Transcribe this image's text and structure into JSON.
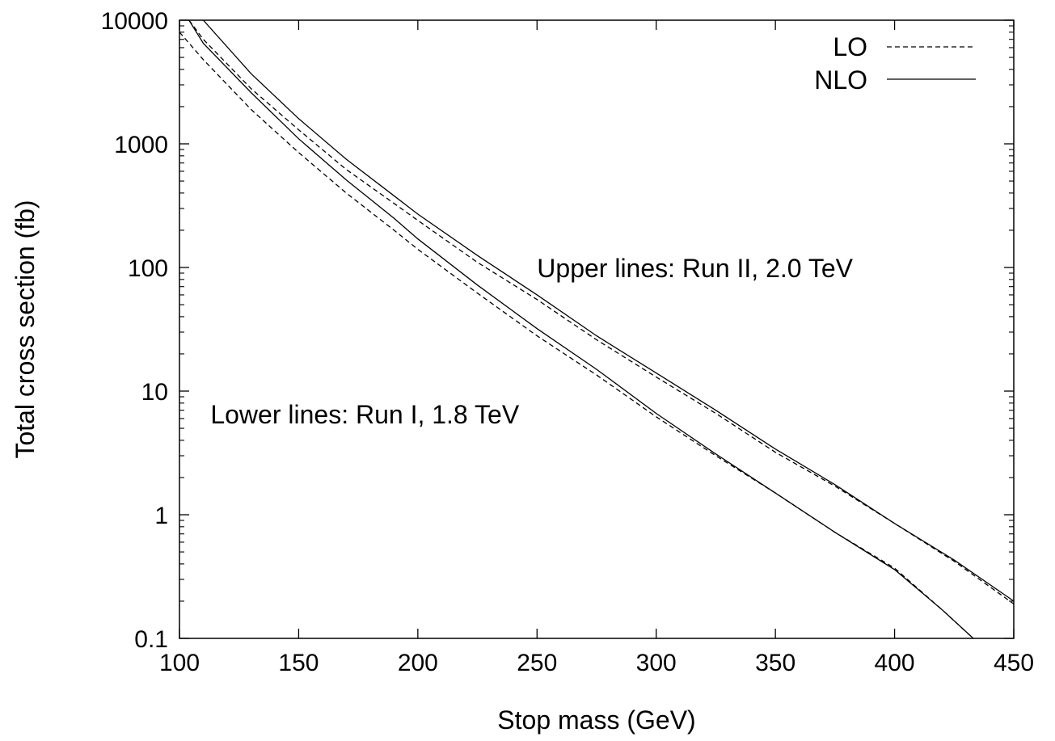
{
  "chart_data": {
    "type": "line",
    "xlabel": "Stop mass (GeV)",
    "ylabel": "Total cross section (fb)",
    "xlim": [
      100,
      450
    ],
    "ylim": [
      0.1,
      10000
    ],
    "yscale": "log",
    "grid": false,
    "legend_position": "top-right",
    "x_ticks": [
      100,
      150,
      200,
      250,
      300,
      350,
      400,
      450
    ],
    "x_tick_labels": [
      "100",
      "150",
      "200",
      "250",
      "300",
      "350",
      "400",
      "450"
    ],
    "y_ticks": [
      0.1,
      1,
      10,
      100,
      1000,
      10000
    ],
    "y_tick_labels": [
      "0.1",
      "1",
      "10",
      "100",
      "1000",
      "10000"
    ],
    "legend": [
      {
        "label": "LO",
        "style": "dashed"
      },
      {
        "label": "NLO",
        "style": "solid"
      }
    ],
    "annotations": [
      {
        "text": "Upper lines: Run II, 2.0 TeV",
        "x": 250,
        "y": 100
      },
      {
        "text": "Lower lines: Run I, 1.8 TeV",
        "x": 113,
        "y": 6.5
      }
    ],
    "series": [
      {
        "legend": "LO",
        "style": "dashed",
        "points": [
          [
            104,
            10000
          ],
          [
            110,
            7000
          ],
          [
            130,
            2800
          ],
          [
            150,
            1300
          ],
          [
            170,
            620
          ],
          [
            190,
            330
          ],
          [
            200,
            240
          ],
          [
            225,
            110
          ],
          [
            250,
            55
          ],
          [
            275,
            26
          ],
          [
            300,
            13
          ],
          [
            325,
            6.6
          ],
          [
            350,
            3.2
          ],
          [
            375,
            1.7
          ],
          [
            400,
            0.85
          ],
          [
            425,
            0.42
          ],
          [
            450,
            0.19
          ]
        ]
      },
      {
        "legend": "NLO",
        "style": "solid",
        "points": [
          [
            110,
            10000
          ],
          [
            130,
            3700
          ],
          [
            150,
            1600
          ],
          [
            170,
            750
          ],
          [
            190,
            380
          ],
          [
            200,
            270
          ],
          [
            225,
            125
          ],
          [
            250,
            60
          ],
          [
            275,
            28
          ],
          [
            300,
            14
          ],
          [
            325,
            7.0
          ],
          [
            350,
            3.4
          ],
          [
            375,
            1.75
          ],
          [
            400,
            0.85
          ],
          [
            425,
            0.43
          ],
          [
            450,
            0.2
          ]
        ]
      },
      {
        "legend": "LO",
        "style": "dashed",
        "points": [
          [
            100,
            8000
          ],
          [
            110,
            4800
          ],
          [
            130,
            1900
          ],
          [
            150,
            850
          ],
          [
            170,
            400
          ],
          [
            190,
            200
          ],
          [
            200,
            140
          ],
          [
            225,
            62
          ],
          [
            250,
            28
          ],
          [
            275,
            13.5
          ],
          [
            300,
            6.2
          ],
          [
            325,
            3.0
          ],
          [
            350,
            1.5
          ],
          [
            375,
            0.72
          ],
          [
            400,
            0.37
          ],
          [
            420,
            0.17
          ],
          [
            433,
            0.1
          ]
        ]
      },
      {
        "legend": "NLO",
        "style": "solid",
        "points": [
          [
            104,
            10000
          ],
          [
            110,
            6500
          ],
          [
            130,
            2600
          ],
          [
            150,
            1100
          ],
          [
            170,
            510
          ],
          [
            190,
            250
          ],
          [
            200,
            170
          ],
          [
            225,
            72
          ],
          [
            250,
            32
          ],
          [
            275,
            15
          ],
          [
            300,
            6.6
          ],
          [
            325,
            3.1
          ],
          [
            350,
            1.5
          ],
          [
            375,
            0.72
          ],
          [
            400,
            0.36
          ],
          [
            420,
            0.17
          ],
          [
            433,
            0.1
          ]
        ]
      }
    ]
  }
}
